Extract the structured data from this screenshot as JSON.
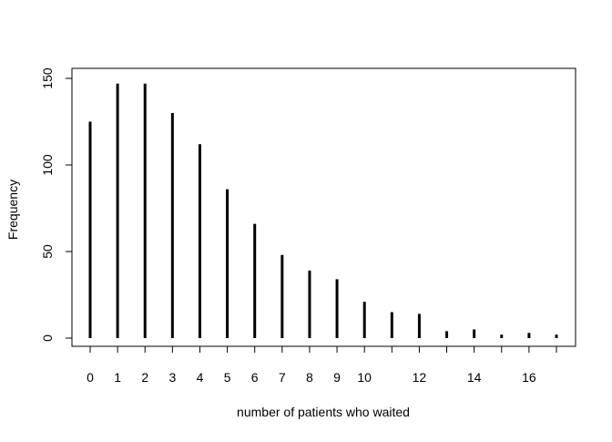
{
  "chart_data": {
    "type": "bar",
    "style": "spikes",
    "title": "",
    "xlabel": "number of patients who waited",
    "ylabel": "Frequency",
    "x": [
      0,
      1,
      2,
      3,
      4,
      5,
      6,
      7,
      8,
      9,
      10,
      11,
      12,
      13,
      14,
      15,
      16,
      17
    ],
    "values": [
      125,
      147,
      147,
      130,
      112,
      86,
      66,
      48,
      39,
      34,
      21,
      15,
      14,
      4,
      5,
      2,
      3,
      2
    ],
    "xlim": [
      0,
      17
    ],
    "ylim": [
      0,
      150
    ],
    "x_ticks": [
      0,
      1,
      2,
      3,
      4,
      5,
      6,
      7,
      8,
      9,
      10,
      11,
      12,
      13,
      14,
      15,
      16,
      17
    ],
    "x_tick_labels": [
      "0",
      "1",
      "2",
      "3",
      "4",
      "5",
      "6",
      "7",
      "8",
      "9",
      "10",
      "",
      "12",
      "",
      "14",
      "",
      "16",
      ""
    ],
    "y_ticks": [
      0,
      50,
      100,
      150
    ],
    "y_tick_labels": [
      "0",
      "50",
      "100",
      "150"
    ],
    "grid": false,
    "legend": "none",
    "bar_color": "#000000"
  }
}
